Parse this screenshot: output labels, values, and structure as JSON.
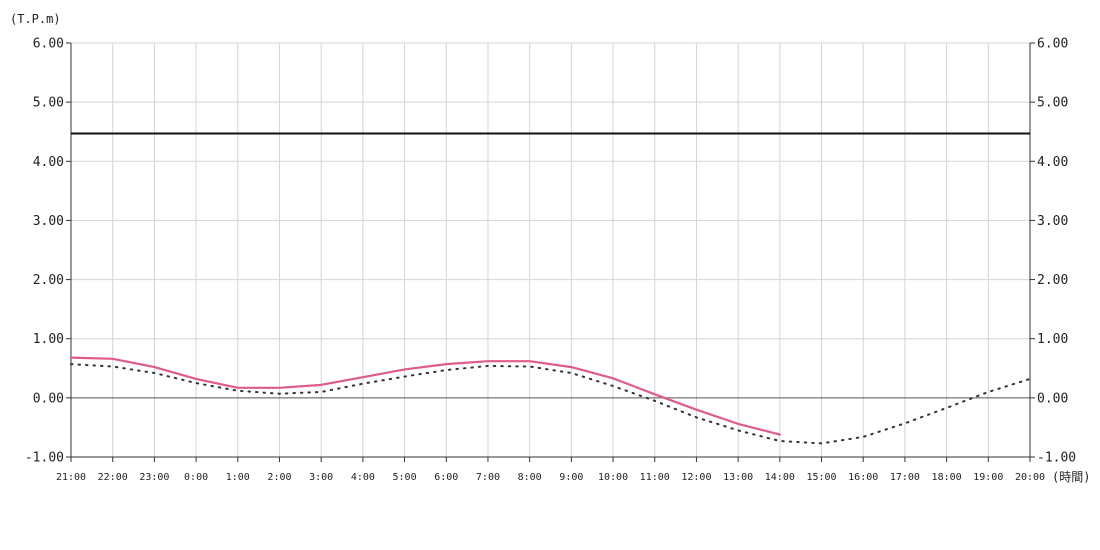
{
  "chart_data": {
    "type": "line",
    "y_unit": "(T.P.m)",
    "x_unit": "(時間)",
    "categories": [
      "21:00",
      "22:00",
      "23:00",
      "0:00",
      "1:00",
      "2:00",
      "3:00",
      "4:00",
      "5:00",
      "6:00",
      "7:00",
      "8:00",
      "9:00",
      "10:00",
      "11:00",
      "12:00",
      "13:00",
      "14:00",
      "15:00",
      "16:00",
      "17:00",
      "18:00",
      "19:00",
      "20:00"
    ],
    "y_ticks": [
      "6.00",
      "5.00",
      "4.00",
      "3.00",
      "2.00",
      "1.00",
      "0.00",
      "-1.00"
    ],
    "ylim": [
      -1.0,
      6.0
    ],
    "grid": true,
    "reference_line": {
      "value": 4.47,
      "color": "#111111"
    },
    "series": [
      {
        "style": "solid",
        "color": "#e05a8a",
        "values": [
          0.68,
          0.66,
          0.52,
          0.32,
          0.17,
          0.17,
          0.22,
          0.35,
          0.48,
          0.57,
          0.62,
          0.62,
          0.52,
          0.33,
          0.06,
          -0.2,
          -0.44,
          -0.62,
          null,
          null,
          null,
          null,
          null,
          null
        ]
      },
      {
        "style": "dotted",
        "color": "#333333",
        "values": [
          0.57,
          0.53,
          0.42,
          0.25,
          0.12,
          0.07,
          0.1,
          0.24,
          0.36,
          0.47,
          0.54,
          0.53,
          0.42,
          0.2,
          -0.05,
          -0.33,
          -0.55,
          -0.73,
          -0.77,
          -0.66,
          -0.43,
          -0.17,
          0.1,
          0.32
        ]
      }
    ]
  }
}
